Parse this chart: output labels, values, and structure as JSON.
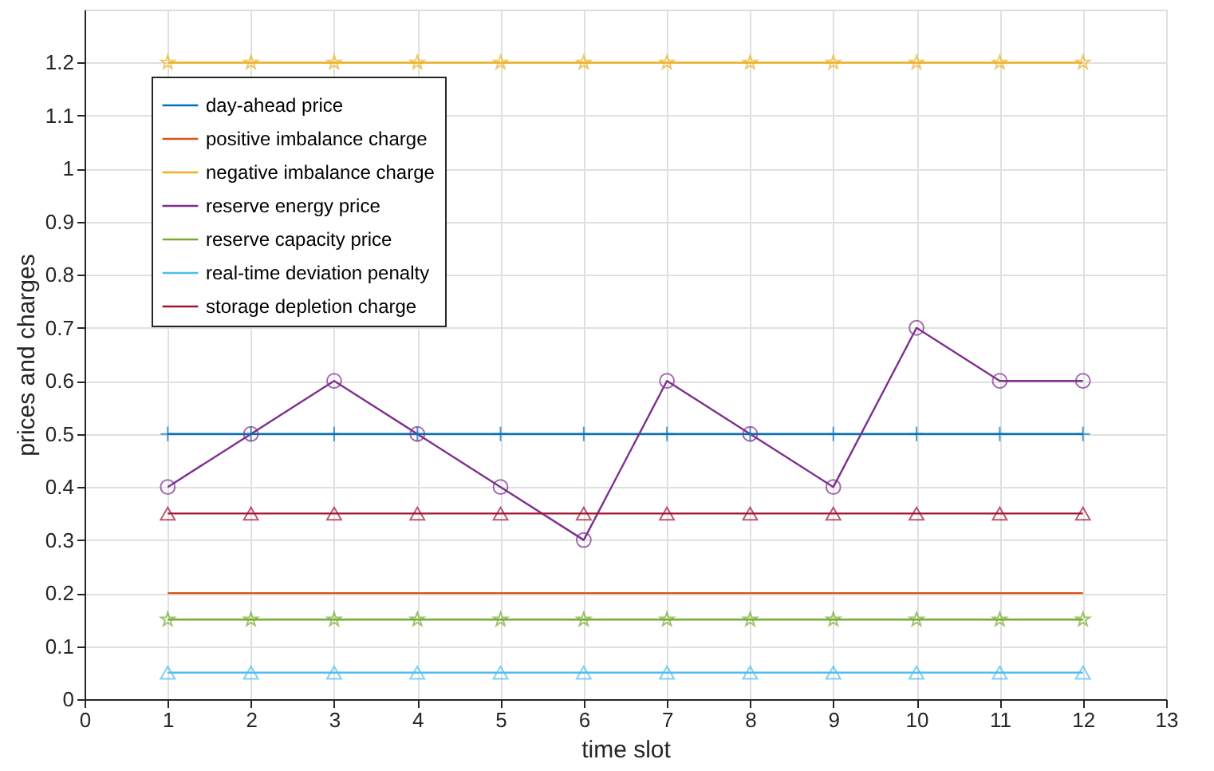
{
  "chart_data": {
    "type": "line",
    "xlabel": "time slot",
    "ylabel": "prices and charges",
    "x": [
      1,
      2,
      3,
      4,
      5,
      6,
      7,
      8,
      9,
      10,
      11,
      12
    ],
    "series": [
      {
        "name": "day-ahead price",
        "color": "#0072bd",
        "marker": "cross",
        "values": [
          0.5,
          0.5,
          0.5,
          0.5,
          0.5,
          0.5,
          0.5,
          0.5,
          0.5,
          0.5,
          0.5,
          0.5
        ]
      },
      {
        "name": "positive imbalance charge",
        "color": "#d95319",
        "marker": "none",
        "values": [
          0.2,
          0.2,
          0.2,
          0.2,
          0.2,
          0.2,
          0.2,
          0.2,
          0.2,
          0.2,
          0.2,
          0.2
        ]
      },
      {
        "name": "negative imbalance charge",
        "color": "#edb120",
        "marker": "star",
        "values": [
          1.2,
          1.2,
          1.2,
          1.2,
          1.2,
          1.2,
          1.2,
          1.2,
          1.2,
          1.2,
          1.2,
          1.2
        ]
      },
      {
        "name": "reserve energy price",
        "color": "#7e2f8e",
        "marker": "circle",
        "values": [
          0.4,
          0.5,
          0.6,
          0.5,
          0.4,
          0.3,
          0.6,
          0.5,
          0.4,
          0.7,
          0.6,
          0.6
        ]
      },
      {
        "name": "reserve capacity price",
        "color": "#77ac30",
        "marker": "star",
        "values": [
          0.15,
          0.15,
          0.15,
          0.15,
          0.15,
          0.15,
          0.15,
          0.15,
          0.15,
          0.15,
          0.15,
          0.15
        ]
      },
      {
        "name": "real-time deviation penalty",
        "color": "#4dbeee",
        "marker": "triangle",
        "values": [
          0.05,
          0.05,
          0.05,
          0.05,
          0.05,
          0.05,
          0.05,
          0.05,
          0.05,
          0.05,
          0.05,
          0.05
        ]
      },
      {
        "name": "storage depletion charge",
        "color": "#a2142f",
        "marker": "triangle",
        "values": [
          0.35,
          0.35,
          0.35,
          0.35,
          0.35,
          0.35,
          0.35,
          0.35,
          0.35,
          0.35,
          0.35,
          0.35
        ]
      }
    ],
    "xlim": [
      0,
      13
    ],
    "xticks": [
      0,
      1,
      2,
      3,
      4,
      5,
      6,
      7,
      8,
      9,
      10,
      11,
      12,
      13
    ],
    "ylim": [
      0,
      1.3
    ],
    "yticks": [
      0,
      0.1,
      0.2,
      0.3,
      0.4,
      0.5,
      0.6,
      0.7,
      0.8,
      0.9,
      1,
      1.1,
      1.2
    ],
    "grid": true,
    "legend": "top left",
    "line_style": "solid"
  }
}
